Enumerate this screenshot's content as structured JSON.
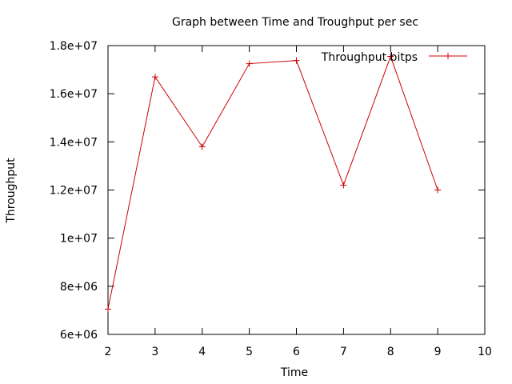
{
  "chart_data": {
    "type": "line",
    "title": "Graph between Time and Troughput per sec",
    "xlabel": "Time",
    "ylabel": "Throughput",
    "xlim": [
      2,
      10
    ],
    "ylim": [
      6000000,
      18000000
    ],
    "x_ticks": [
      2,
      3,
      4,
      5,
      6,
      7,
      8,
      9,
      10
    ],
    "x_tick_labels": [
      "2",
      "3",
      "4",
      "5",
      "6",
      "7",
      "8",
      "9",
      "10"
    ],
    "y_ticks": [
      6000000,
      8000000,
      10000000,
      12000000,
      14000000,
      16000000,
      18000000
    ],
    "y_tick_labels": [
      "6e+06",
      "8e+06",
      "1e+07",
      "1.2e+07",
      "1.4e+07",
      "1.6e+07",
      "1.8e+07"
    ],
    "grid": false,
    "legend_position": "top-right",
    "series": [
      {
        "name": "Throughput bitps",
        "color": "#cc0000",
        "marker": "plus",
        "x": [
          2,
          3,
          4,
          5,
          6,
          7,
          8,
          9
        ],
        "y": [
          7050000,
          16700000,
          13800000,
          17250000,
          17380000,
          12200000,
          17550000,
          12000000
        ]
      }
    ]
  }
}
